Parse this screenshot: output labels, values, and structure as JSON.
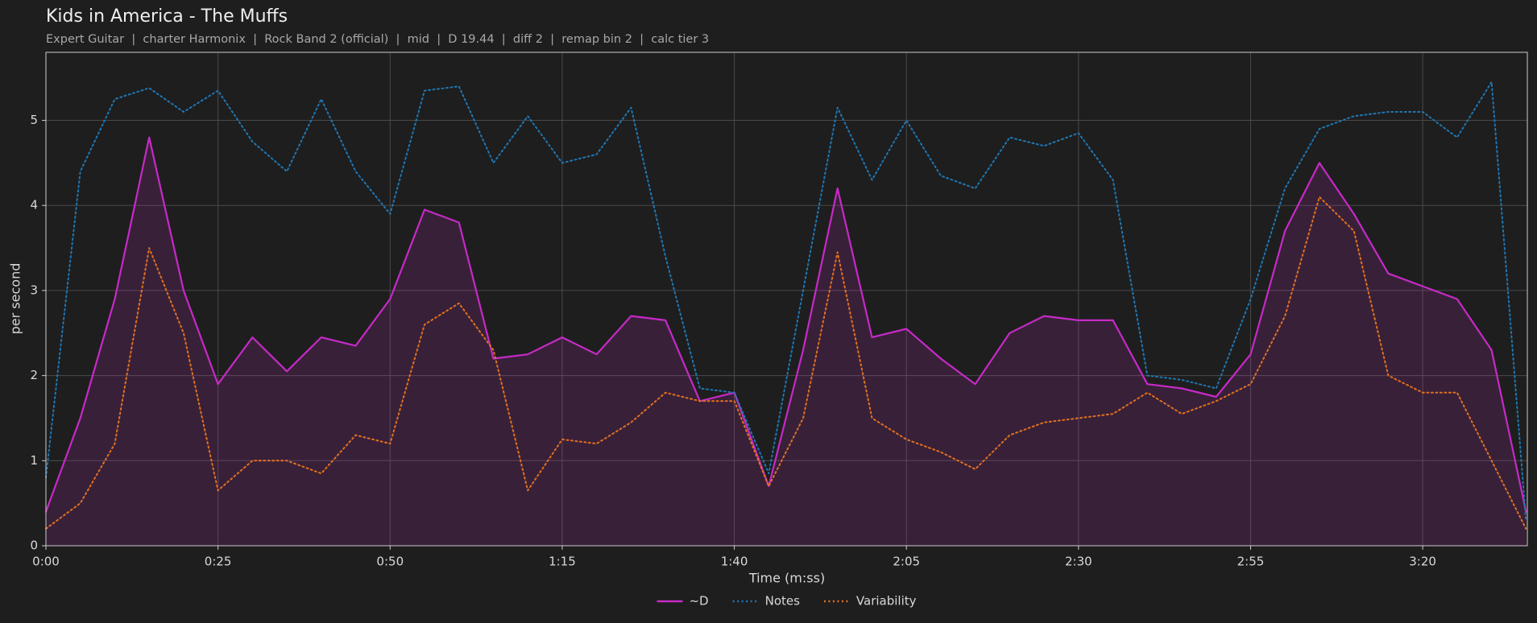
{
  "chart_data": {
    "type": "line",
    "title": "Kids in America - The Muffs",
    "subtitle": "Expert Guitar  |  charter Harmonix  |  Rock Band 2 (official)  |  mid  |  D 19.44  |  diff 2  |  remap bin 2  |  calc tier 3",
    "xlabel": "Time (m:ss)",
    "ylabel": "per second",
    "x": [
      0,
      5,
      10,
      15,
      20,
      25,
      30,
      35,
      40,
      45,
      50,
      55,
      60,
      65,
      70,
      75,
      80,
      85,
      90,
      95,
      100,
      105,
      110,
      115,
      120,
      125,
      130,
      135,
      140,
      145,
      150,
      155,
      160,
      165,
      170,
      175,
      180,
      185,
      190,
      195,
      200,
      205,
      210,
      215
    ],
    "series": [
      {
        "name": "~D",
        "color": "#c62ac6",
        "style": "solid",
        "fill": true,
        "values": [
          0.4,
          1.5,
          2.9,
          4.8,
          3.0,
          1.9,
          2.45,
          2.05,
          2.45,
          2.35,
          2.9,
          3.95,
          3.8,
          2.2,
          2.25,
          2.45,
          2.25,
          2.7,
          2.65,
          1.7,
          1.8,
          0.7,
          2.3,
          4.2,
          2.45,
          2.55,
          2.2,
          1.9,
          2.5,
          2.7,
          2.65,
          2.65,
          1.9,
          1.85,
          1.75,
          2.25,
          3.7,
          4.5,
          3.9,
          3.2,
          3.05,
          2.9,
          2.3,
          0.4
        ]
      },
      {
        "name": "Notes",
        "color": "#1f77b4",
        "style": "dotted",
        "fill": false,
        "values": [
          0.8,
          4.4,
          5.25,
          5.38,
          5.1,
          5.35,
          4.75,
          4.4,
          5.25,
          4.4,
          3.9,
          5.35,
          5.4,
          4.5,
          5.05,
          4.5,
          4.6,
          5.15,
          3.4,
          1.85,
          1.8,
          0.85,
          3.0,
          5.15,
          4.3,
          5.0,
          4.35,
          4.2,
          4.8,
          4.7,
          4.85,
          4.3,
          2.0,
          1.95,
          1.85,
          2.9,
          4.2,
          4.9,
          5.05,
          5.1,
          5.1,
          4.8,
          5.45,
          0.3
        ]
      },
      {
        "name": "Variability",
        "color": "#e0711f",
        "style": "dotted",
        "fill": false,
        "values": [
          0.2,
          0.5,
          1.2,
          3.5,
          2.5,
          0.65,
          1.0,
          1.0,
          0.85,
          1.3,
          1.2,
          2.6,
          2.85,
          2.3,
          0.65,
          1.25,
          1.2,
          1.45,
          1.8,
          1.7,
          1.7,
          0.7,
          1.5,
          3.45,
          1.5,
          1.25,
          1.1,
          0.9,
          1.3,
          1.45,
          1.5,
          1.55,
          1.8,
          1.55,
          1.7,
          1.9,
          2.7,
          4.1,
          3.7,
          2.0,
          1.8,
          1.8,
          1.0,
          0.2
        ]
      }
    ],
    "xlim": [
      0,
      215.2
    ],
    "ylim": [
      0,
      5.8
    ],
    "xticks": [
      {
        "value": 0,
        "label": "0:00"
      },
      {
        "value": 25,
        "label": "0:25"
      },
      {
        "value": 50,
        "label": "0:50"
      },
      {
        "value": 75,
        "label": "1:15"
      },
      {
        "value": 100,
        "label": "1:40"
      },
      {
        "value": 125,
        "label": "2:05"
      },
      {
        "value": 150,
        "label": "2:30"
      },
      {
        "value": 175,
        "label": "2:55"
      },
      {
        "value": 200,
        "label": "3:20"
      }
    ],
    "yticks": [
      0,
      1,
      2,
      3,
      4,
      5
    ],
    "grid": true
  }
}
